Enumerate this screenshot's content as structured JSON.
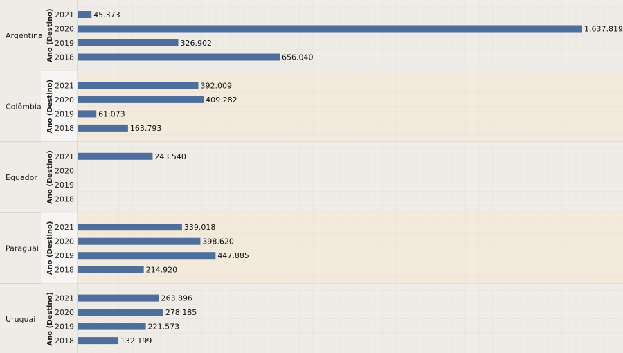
{
  "colors": {
    "bar": "#4e6f9e",
    "band_default": "#efebe7",
    "band_highlight": "#f4eadb",
    "axis_panel_default": "#efebe7",
    "axis_panel_highlight": "#f6f5f3",
    "separator": "#d4d0cb",
    "grid": "#e6e1dc"
  },
  "chart_data": {
    "type": "bar",
    "orientation": "horizontal",
    "row_axis_title": "Ano (Destino)",
    "xlim": [
      0,
      1700000
    ],
    "grid": true,
    "groups": [
      {
        "country": "Argentina",
        "highlight": false,
        "years": [
          "2021",
          "2020",
          "2019",
          "2018"
        ],
        "values": [
          45373,
          1637819,
          326902,
          656040
        ],
        "labels": [
          "45.373",
          "1.637.819",
          "326.902",
          "656.040"
        ]
      },
      {
        "country": "Colômbia",
        "highlight": true,
        "years": [
          "2021",
          "2020",
          "2019",
          "2018"
        ],
        "values": [
          392009,
          409282,
          61073,
          163793
        ],
        "labels": [
          "392.009",
          "409.282",
          "61.073",
          "163.793"
        ]
      },
      {
        "country": "Equador",
        "highlight": false,
        "years": [
          "2021",
          "2020",
          "2019",
          "2018"
        ],
        "values": [
          243540,
          null,
          null,
          null
        ],
        "labels": [
          "243.540",
          "",
          "",
          ""
        ]
      },
      {
        "country": "Paraguai",
        "highlight": true,
        "years": [
          "2021",
          "2020",
          "2019",
          "2018"
        ],
        "values": [
          339018,
          398620,
          447885,
          214920
        ],
        "labels": [
          "339.018",
          "398.620",
          "447.885",
          "214.920"
        ]
      },
      {
        "country": "Uruguai",
        "highlight": false,
        "years": [
          "2021",
          "2020",
          "2019",
          "2018"
        ],
        "values": [
          263896,
          278185,
          221573,
          132199
        ],
        "labels": [
          "263.896",
          "278.185",
          "221.573",
          "132.199"
        ]
      }
    ]
  }
}
